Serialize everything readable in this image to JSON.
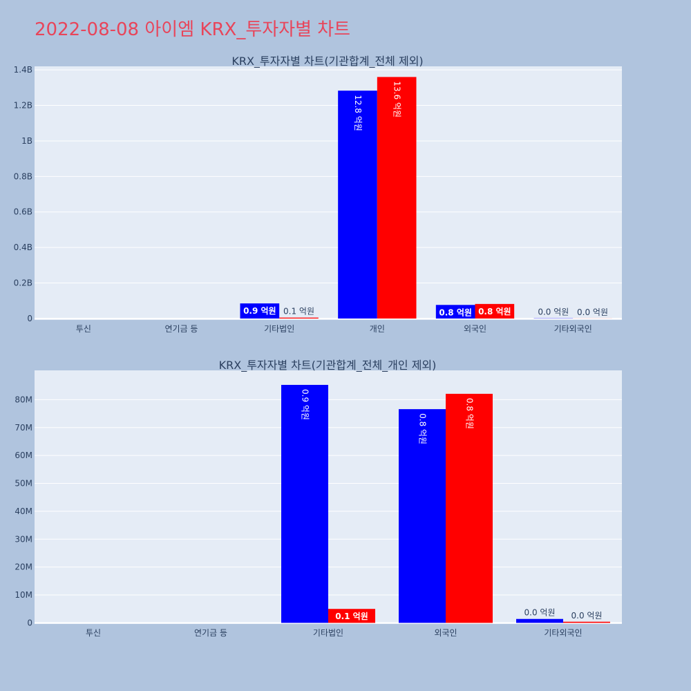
{
  "title": "2022-08-08 아이엠 KRX_투자자별 차트",
  "colors": {
    "series_a": "#0000ff",
    "series_b": "#ff0000",
    "plot_bg": "#e5ecf6",
    "page_bg": "#b0c4de",
    "title": "#e8455a"
  },
  "chart_data": [
    {
      "type": "bar",
      "title": "KRX_투자자별 차트(기관합계_전체 제외)",
      "categories": [
        "투신",
        "연기금 등",
        "기타법인",
        "개인",
        "외국인",
        "기타외국인"
      ],
      "series": [
        {
          "values": [
            0,
            0,
            85000000,
            1283000000,
            76500000,
            1300000
          ],
          "labels": [
            "",
            "",
            "0.9 억원",
            "12.8 억원",
            "0.8 억원",
            "0.0 억원"
          ]
        },
        {
          "values": [
            0,
            0,
            5000000,
            1360000000,
            82000000,
            400000
          ],
          "labels": [
            "",
            "",
            "0.1 억원",
            "13.6 억원",
            "0.8 억원",
            "0.0 억원"
          ]
        }
      ],
      "ylim": [
        -8000000,
        1420000000
      ],
      "yticks": [
        {
          "v": 0,
          "label": "0"
        },
        {
          "v": 200000000,
          "label": "0.2B"
        },
        {
          "v": 400000000,
          "label": "0.4B"
        },
        {
          "v": 600000000,
          "label": "0.6B"
        },
        {
          "v": 800000000,
          "label": "0.8B"
        },
        {
          "v": 1000000000,
          "label": "1B"
        },
        {
          "v": 1200000000,
          "label": "1.2B"
        },
        {
          "v": 1400000000,
          "label": "1.4B"
        }
      ],
      "grid": true,
      "legend": "none"
    },
    {
      "type": "bar",
      "title": "KRX_투자자별 차트(기관합계_전체_개인 제외)",
      "categories": [
        "투신",
        "연기금 등",
        "기타법인",
        "외국인",
        "기타외국인"
      ],
      "series": [
        {
          "values": [
            0,
            0,
            85300000,
            76600000,
            1400000
          ],
          "labels": [
            "",
            "",
            "0.9 억원",
            "0.8 억원",
            "0.0 억원"
          ]
        },
        {
          "values": [
            0,
            0,
            5000000,
            82100000,
            400000
          ],
          "labels": [
            "",
            "",
            "0.1 억원",
            "0.8 억원",
            "0.0 억원"
          ]
        }
      ],
      "ylim": [
        -400000,
        90500000
      ],
      "yticks": [
        {
          "v": 0,
          "label": "0"
        },
        {
          "v": 10000000,
          "label": "10M"
        },
        {
          "v": 20000000,
          "label": "20M"
        },
        {
          "v": 30000000,
          "label": "30M"
        },
        {
          "v": 40000000,
          "label": "40M"
        },
        {
          "v": 50000000,
          "label": "50M"
        },
        {
          "v": 60000000,
          "label": "60M"
        },
        {
          "v": 70000000,
          "label": "70M"
        },
        {
          "v": 80000000,
          "label": "80M"
        }
      ],
      "grid": true,
      "legend": "none"
    }
  ]
}
